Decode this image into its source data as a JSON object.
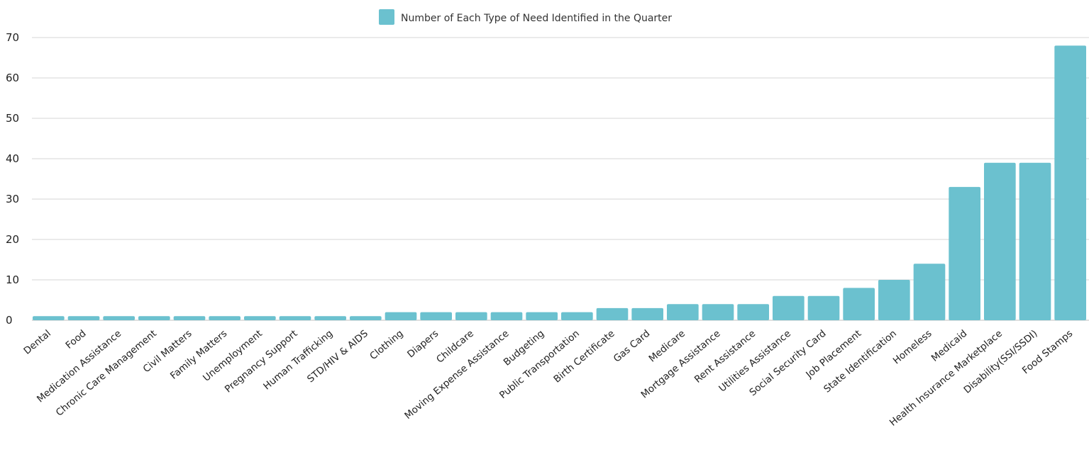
{
  "chart_data": {
    "type": "bar",
    "legend": {
      "label": "Number of Each Type of Need Identified in the Quarter",
      "position": "top-center"
    },
    "categories": [
      "Dental",
      "Food",
      "Medication Assistance",
      "Chronic Care Management",
      "Civil Matters",
      "Family Matters",
      "Unemployment",
      "Pregnancy Support",
      "Human Trafficking",
      "STD/HIV & AIDS",
      "Clothing",
      "Diapers",
      "Childcare",
      "Moving Expense Assistance",
      "Budgeting",
      "Public Transportation",
      "Birth Certificate",
      "Gas Card",
      "Medicare",
      "Mortgage Assistance",
      "Rent Assistance",
      "Utilities Assistance",
      "Social Security Card",
      "Job Placement",
      "State Identification",
      "Homeless",
      "Medicaid",
      "Health Insurance Marketplace",
      "Disability(SSI/SSDI)",
      "Food Stamps"
    ],
    "series": [
      {
        "name": "Number of Each Type of Need Identified in the Quarter",
        "values": [
          1,
          1,
          1,
          1,
          1,
          1,
          1,
          1,
          1,
          1,
          2,
          2,
          2,
          2,
          2,
          2,
          3,
          3,
          4,
          4,
          4,
          6,
          6,
          8,
          10,
          14,
          33,
          39,
          39,
          68
        ],
        "color": "#6bc1cf"
      }
    ],
    "ylim": [
      0,
      70
    ],
    "yticks": [
      0,
      10,
      20,
      30,
      40,
      50,
      60,
      70
    ],
    "grid": true,
    "xlabel": "",
    "ylabel": ""
  }
}
